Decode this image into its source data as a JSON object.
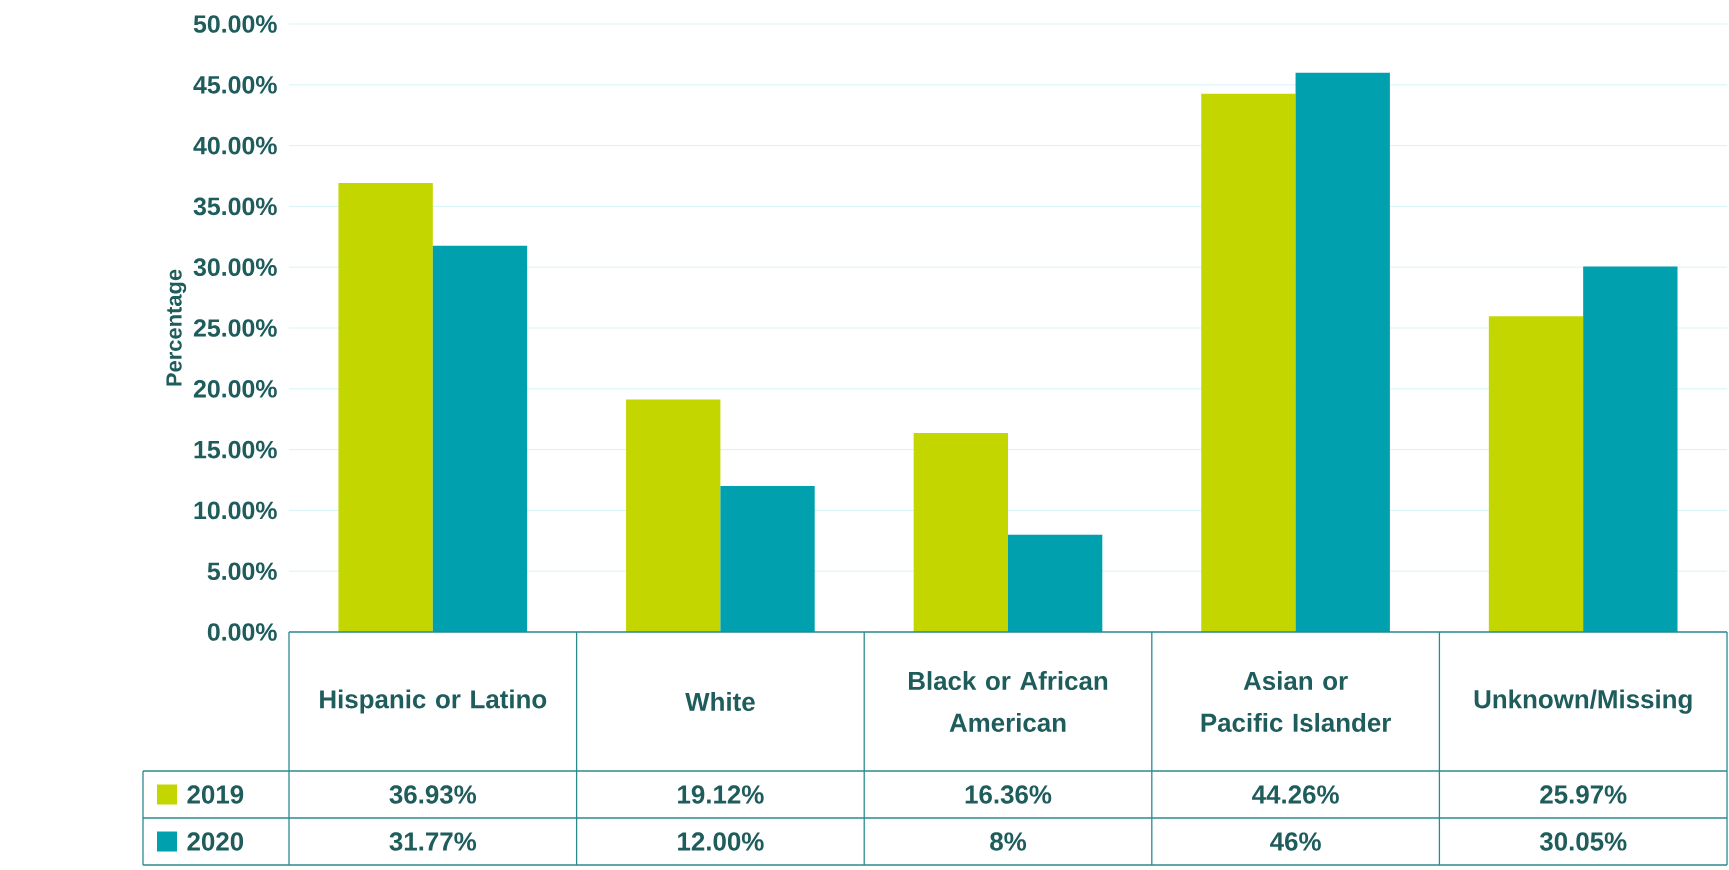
{
  "chart_data": {
    "type": "bar",
    "ylabel": "Percentage",
    "categories": [
      "Hispanic or Latino",
      "White",
      "Black or African American",
      "Asian or Pacific Islander",
      "Unknown/Missing"
    ],
    "series": [
      {
        "name": "2019",
        "color": "#c4d600",
        "values": [
          36.93,
          19.12,
          16.36,
          44.26,
          25.97
        ],
        "value_labels": [
          "36.93%",
          "19.12%",
          "16.36%",
          "44.26%",
          "25.97%"
        ]
      },
      {
        "name": "2020",
        "color": "#00a0af",
        "values": [
          31.77,
          12.0,
          8,
          46,
          30.05
        ],
        "value_labels": [
          "31.77%",
          "12.00%",
          "8%",
          "46%",
          "30.05%"
        ]
      }
    ],
    "ylim": [
      0,
      50
    ],
    "yticks": [
      {
        "value": 0,
        "label": "0.00%"
      },
      {
        "value": 5,
        "label": "5.00%"
      },
      {
        "value": 10,
        "label": "10.00%"
      },
      {
        "value": 15,
        "label": "15.00%"
      },
      {
        "value": 20,
        "label": "20.00%"
      },
      {
        "value": 25,
        "label": "25.00%"
      },
      {
        "value": 30,
        "label": "30.00%"
      },
      {
        "value": 35,
        "label": "35.00%"
      },
      {
        "value": 40,
        "label": "40.00%"
      },
      {
        "value": 45,
        "label": "45.00%"
      },
      {
        "value": 50,
        "label": "50.00%"
      }
    ],
    "grid": "y",
    "legend": "bottom"
  }
}
